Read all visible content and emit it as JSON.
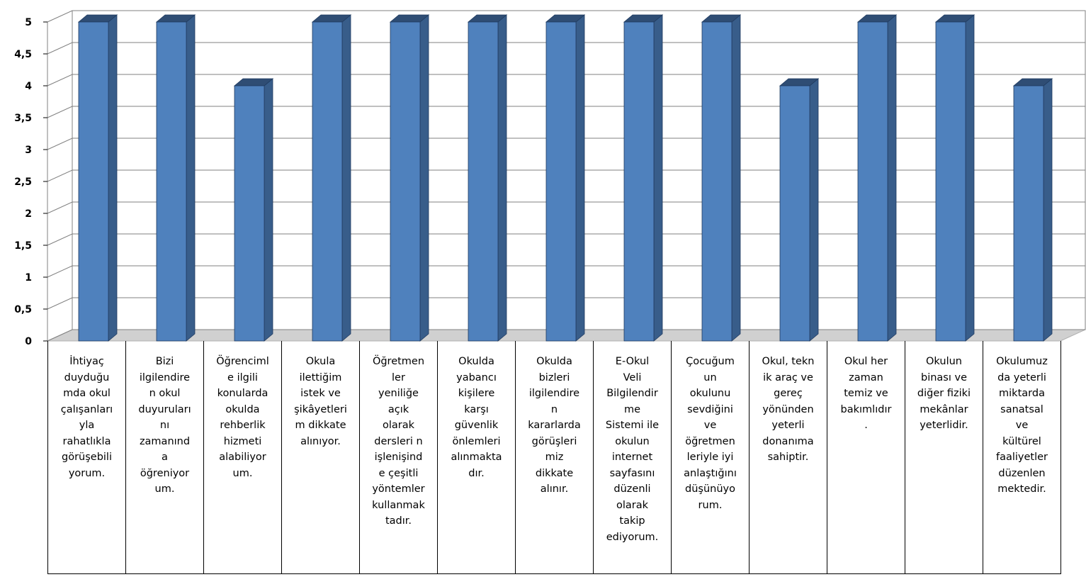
{
  "chart_data": {
    "type": "bar",
    "style": "3d-column",
    "title": "",
    "xlabel": "",
    "ylabel": "",
    "ylim": [
      0,
      5
    ],
    "yticks": [
      "0",
      "0,5",
      "1",
      "1,5",
      "2",
      "2,5",
      "3",
      "3,5",
      "4",
      "4,5",
      "5"
    ],
    "grid": true,
    "legend": "none",
    "colors": {
      "bar_front": "#4f81bd",
      "bar_side": "#385d8a",
      "bar_top": "#2f4d74",
      "grid": "#808080",
      "floor": "#b0b0b0"
    },
    "categories": [
      "İhtiyaç\nduyduğu\nmda okul\nçalışanları\nyla\nrahatlıkla\ngörüşebili\nyorum.",
      "Bizi\nilgilendire\nn okul\nduyuruları\nnı\nzamanınd\na\nöğreniyor\num.",
      "Öğrenciml\ne ilgili\nkonularda\nokulda\nrehberlik\nhizmeti\nalabiliyor\num.",
      "Okula\nilettiğim\nistek ve\nşikâyetleri\nm dikkate\nalınıyor.",
      "Öğretmen\nler\nyeniliğe\naçık\nolarak\ndersleri n\nişlenişind\ne çeşitli\nyöntemler\nkullanmak\ntadır.",
      "Okulda\nyabancı\nkişilere\nkarşı\ngüvenlik\nönlemleri\nalınmakta\ndır.",
      "Okulda\nbizleri\nilgilendire\nn\nkararlarda\ngörüşleri\nmiz\ndikkate\nalınır.",
      "E-Okul\nVeli\nBilgilendir\nme\nSistemi ile\nokulun\ninternet\nsayfasını\ndüzenli\nolarak\ntakip\nediyorum.",
      "Çocuğum\nun\nokulunu\nsevdiğini\nve\nöğretmen\nleriyle iyi\nanlaştığını\ndüşünüyo\nrum.",
      "Okul, tekn\nik araç ve\ngereç\nyönünden\nyeterli\ndonanıma\nsahiptir.",
      "Okul her\nzaman\ntemiz ve\nbakımlıdır\n.",
      "Okulun\nbinası ve\ndiğer fiziki\nmekânlar\nyeterlidir.",
      "Okulumuz\nda yeterli\nmiktarda\nsanatsal\nve\nkültürel\nfaaliyetler\ndüzenlen\nmektedir."
    ],
    "values": [
      5,
      5,
      4,
      5,
      5,
      5,
      5,
      5,
      5,
      4,
      5,
      5,
      4
    ]
  }
}
